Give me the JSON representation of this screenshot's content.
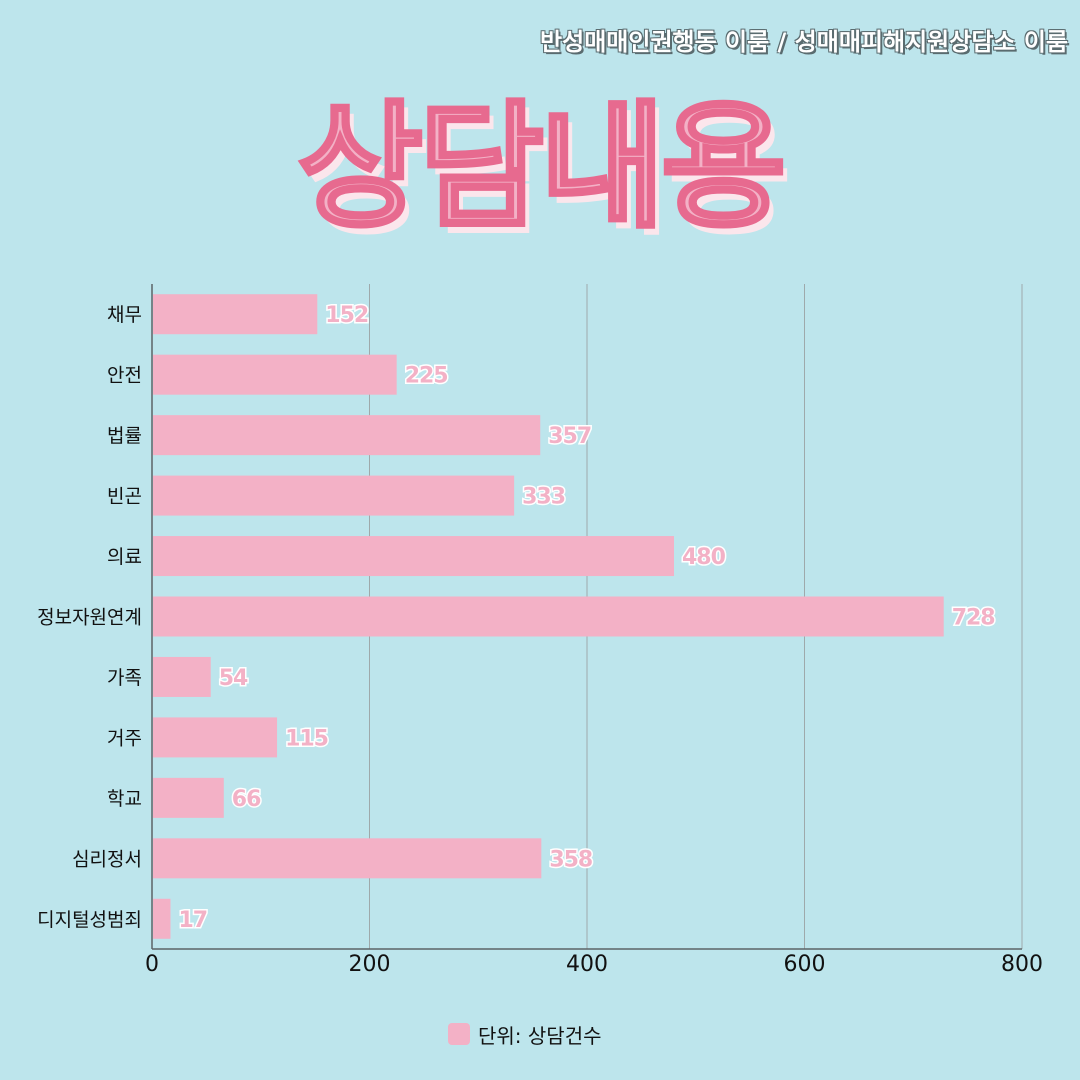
{
  "header": {
    "org_text": "반성매매인권행동 이룸 / 성매매피해지원상담소 이룸",
    "title": "상담내용"
  },
  "legend": {
    "label": "단위: 상담건수",
    "color": "#f3b1c6"
  },
  "colors": {
    "background": "#bde5ec",
    "bar": "#f3b1c6",
    "value_label_fill": "#f3b1c6",
    "value_label_stroke": "#ffffff",
    "title_stroke": "#e76a8f"
  },
  "chart_data": {
    "type": "bar",
    "orientation": "horizontal",
    "categories": [
      "채무",
      "안전",
      "법률",
      "빈곤",
      "의료",
      "정보자원연계",
      "가족",
      "거주",
      "학교",
      "심리정서",
      "디지털성범죄"
    ],
    "values": [
      152,
      225,
      357,
      333,
      480,
      728,
      54,
      115,
      66,
      358,
      17
    ],
    "xlim": [
      0,
      800
    ],
    "xticks": [
      "0",
      "200",
      "400",
      "600",
      "800"
    ],
    "grid": "vertical",
    "legend_position": "bottom-center"
  }
}
